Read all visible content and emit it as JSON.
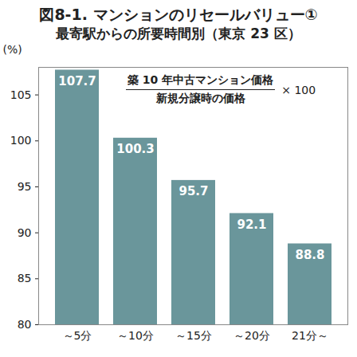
{
  "chart_data": {
    "type": "bar",
    "title": "図8-1. マンションのリセールバリュー①",
    "subtitle": "最寄駅からの所要時間別（東京 23 区）",
    "y_label": "(%)",
    "formula": {
      "numerator": "築 10 年中古マンション価格",
      "denominator": "新規分譲時の価格",
      "multiplier": "× 100"
    },
    "categories": [
      "～5分",
      "～10分",
      "～15分",
      "～20分",
      "21分～"
    ],
    "values": [
      107.7,
      100.3,
      95.7,
      92.1,
      88.8
    ],
    "color": "#6a969b",
    "ylim": [
      80,
      108
    ],
    "yticks": [
      80,
      85,
      90,
      95,
      100,
      105
    ],
    "data_labels": true,
    "grid": false
  }
}
